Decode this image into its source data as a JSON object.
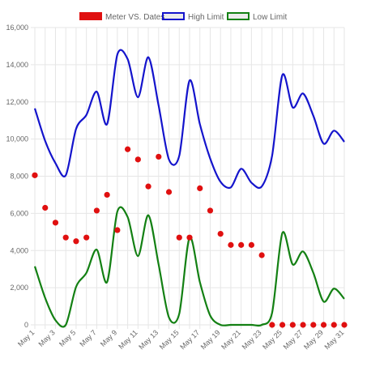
{
  "chart_data": {
    "type": "line",
    "x": [
      "May 1",
      "May 2",
      "May 3",
      "May 4",
      "May 5",
      "May 6",
      "May 7",
      "May 8",
      "May 9",
      "May 10",
      "May 11",
      "May 12",
      "May 13",
      "May 14",
      "May 15",
      "May 16",
      "May 17",
      "May 18",
      "May 19",
      "May 20",
      "May 21",
      "May 22",
      "May 23",
      "May 24",
      "May 25",
      "May 26",
      "May 27",
      "May 28",
      "May 29",
      "May 30",
      "May 31"
    ],
    "xtick_labels": [
      "May 1",
      "May 3",
      "May 5",
      "May 7",
      "May 9",
      "May 11",
      "May 13",
      "May 15",
      "May 17",
      "May 19",
      "May 21",
      "May 23",
      "May 25",
      "May 27",
      "May 29",
      "May 31"
    ],
    "ylim": [
      0,
      16000
    ],
    "yticks": [
      0,
      2000,
      4000,
      6000,
      8000,
      10000,
      12000,
      14000,
      16000
    ],
    "ytick_labels": [
      "0",
      "2,000",
      "4,000",
      "6,000",
      "8,000",
      "10,000",
      "12,000",
      "14,000",
      "16,000"
    ],
    "grid": true,
    "legend_position": "top",
    "series": [
      {
        "name": "Meter VS. Dates",
        "kind": "scatter",
        "color": "#e01010",
        "values": [
          8050,
          6300,
          5500,
          4700,
          4500,
          4700,
          6150,
          7000,
          5100,
          9450,
          8900,
          7450,
          9050,
          7150,
          4700,
          4700,
          7350,
          6150,
          4900,
          4300,
          4300,
          4300,
          3750,
          0,
          0,
          0,
          0,
          0,
          0,
          0,
          0
        ]
      },
      {
        "name": "High Limit",
        "kind": "line",
        "color": "#1414cc",
        "values": [
          11650,
          9900,
          8700,
          8050,
          10550,
          11300,
          12550,
          10800,
          14550,
          14300,
          12250,
          14400,
          11800,
          8900,
          9100,
          13150,
          10800,
          8950,
          7700,
          7400,
          8400,
          7650,
          7450,
          9100,
          13450,
          11700,
          12450,
          11250,
          9750,
          10450,
          9850
        ]
      },
      {
        "name": "Low Limit",
        "kind": "line",
        "color": "#138013",
        "values": [
          3150,
          1450,
          250,
          0,
          2050,
          2800,
          4050,
          2300,
          6100,
          5800,
          3700,
          5900,
          3250,
          400,
          600,
          4700,
          2300,
          500,
          0,
          0,
          0,
          0,
          0,
          650,
          4950,
          3250,
          3950,
          2800,
          1250,
          1950,
          1400
        ]
      }
    ]
  }
}
